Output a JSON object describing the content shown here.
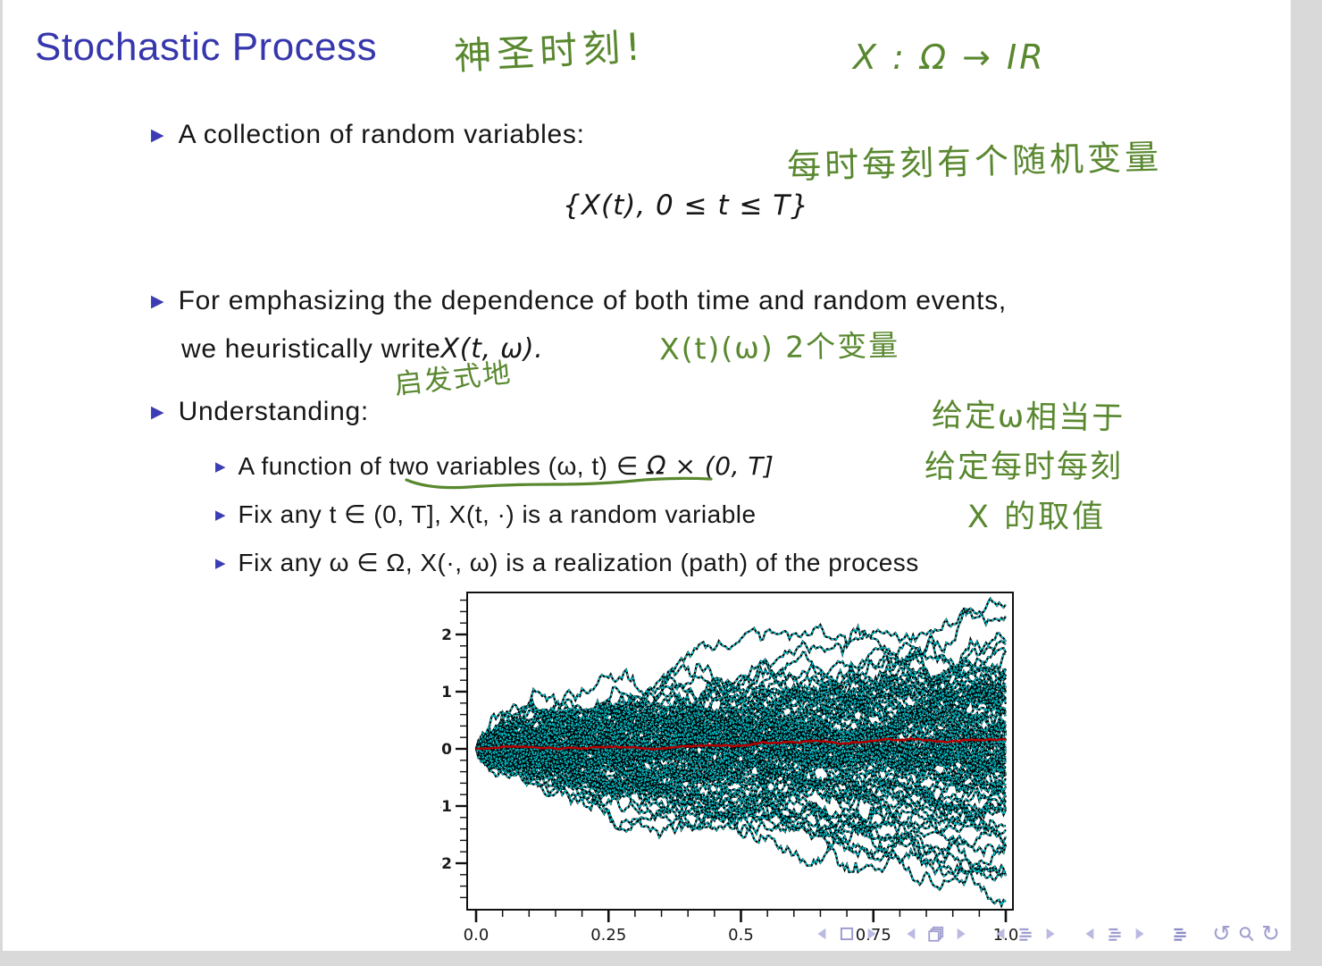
{
  "slide": {
    "title": "Stochastic Process",
    "bullet1": "A collection of random variables:",
    "formula": "{X(t), 0 ≤ t ≤ T}",
    "bullet2_line1": "For emphasizing the dependence of both time and random events,",
    "bullet2_line2_text": "we heuristically write ",
    "bullet2_line2_math": "X(t, ω).",
    "bullet3": "Understanding:",
    "sub1_prefix": "A function of ",
    "sub1_underlined": "two variables (ω, t)",
    "sub1_suffix": " ∈ Ω × (0, T]",
    "sub2": "Fix any t ∈ (0, T], X(t, ·) is a random variable",
    "sub3": "Fix any ω ∈ Ω, X(·, ω) is a realization (path) of the process"
  },
  "annotations": {
    "ink_color": "#59882f",
    "holy_moment": "神圣时刻!",
    "x_map": "X : Ω → IR",
    "every_moment_rv": "每时每刻有个随机变量",
    "two_vars": "X(t)(ω)  2个变量",
    "heuristically": "启发式地",
    "right_line1": "给定ω相当于",
    "right_line2": "给定每时每刻",
    "right_line3": "X 的取值"
  },
  "colors": {
    "title_blue": "#3737ad",
    "bullet_blue": "#3c3cb4",
    "ink_green": "#59882f",
    "path_cyan": "#00d6e2",
    "path_black": "#000000",
    "mean_red": "#b30000",
    "axis_black": "#111111",
    "nav_lavender": "#9e9ecf",
    "viewer_gray": "#d9d9d9"
  },
  "chart_data": {
    "type": "line",
    "title": "",
    "xlabel": "",
    "ylabel": "",
    "description": "Ensemble of simulated Brownian-motion sample paths X(·,ω) on [0,1] fanning out from 0 (cyan with black speckle), with the ensemble mean path overlaid in red staying near 0 and ending around +0.16",
    "x": {
      "range": [
        0,
        1
      ],
      "tick_values": [
        0,
        0.25,
        0.5,
        0.75,
        1.0
      ],
      "tick_labels": [
        "0.0",
        "0.25",
        "0.5",
        "0.75",
        "1.0"
      ],
      "minor_step": 0.05
    },
    "y": {
      "range": [
        -2.8,
        2.73
      ],
      "tick_values": [
        2,
        1,
        0,
        -1,
        -2
      ],
      "tick_labels": [
        "2",
        "1",
        "0",
        "-1",
        "-2"
      ],
      "minor_step": 0.2
    },
    "grid": false,
    "legend": false,
    "series": [
      {
        "name": "brownian-sample-paths",
        "count": 85,
        "start_value": 0,
        "spread_at_t1": 2.6,
        "stroke": "#00d6e2",
        "outline": "#000000"
      },
      {
        "name": "ensemble-mean-path",
        "stroke": "#b30000",
        "value_at_0": 0,
        "value_at_1": 0.16
      }
    ],
    "sim": {
      "seed": 1337,
      "n_paths": 85,
      "n_steps": 240
    }
  },
  "nav": {
    "groups": [
      {
        "name": "nav-slide-group",
        "items": [
          {
            "name": "nav-slide-prev-icon",
            "type": "arrow-left"
          },
          {
            "name": "nav-slide-icon",
            "type": "square"
          },
          {
            "name": "nav-slide-next-icon",
            "type": "arrow-right"
          }
        ]
      },
      {
        "name": "nav-frame-group",
        "items": [
          {
            "name": "nav-frame-prev-icon",
            "type": "arrow-left"
          },
          {
            "name": "nav-frame-icon",
            "type": "frames"
          },
          {
            "name": "nav-frame-next-icon",
            "type": "arrow-right"
          }
        ]
      },
      {
        "name": "nav-subsection-group",
        "items": [
          {
            "name": "nav-subsection-prev-icon",
            "type": "arrow-left"
          },
          {
            "name": "nav-subsection-icon",
            "type": "lines"
          },
          {
            "name": "nav-subsection-next-icon",
            "type": "arrow-right"
          }
        ]
      },
      {
        "name": "nav-section-group",
        "items": [
          {
            "name": "nav-section-prev-icon",
            "type": "arrow-left"
          },
          {
            "name": "nav-section-icon",
            "type": "lines"
          },
          {
            "name": "nav-section-next-icon",
            "type": "arrow-right"
          }
        ]
      },
      {
        "name": "nav-appendix-group",
        "items": [
          {
            "name": "nav-appendix-icon",
            "type": "lines-dark"
          }
        ]
      },
      {
        "name": "nav-history-group",
        "items": [
          {
            "name": "nav-back-icon",
            "type": "undo"
          },
          {
            "name": "nav-search-icon",
            "type": "search"
          },
          {
            "name": "nav-forward-icon",
            "type": "redo"
          }
        ]
      }
    ]
  }
}
